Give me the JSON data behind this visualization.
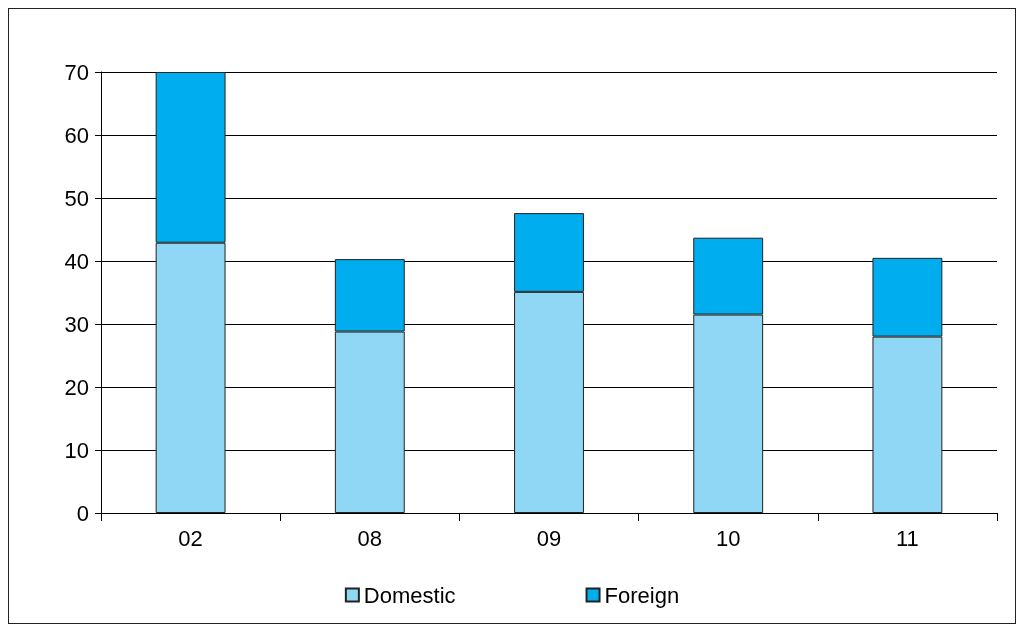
{
  "chart_data": {
    "type": "bar",
    "stacked": true,
    "categories": [
      "02",
      "08",
      "09",
      "10",
      "11"
    ],
    "series": [
      {
        "name": "Domestic",
        "color": "#8fd7f5",
        "values": [
          42.9,
          28.8,
          35.1,
          31.5,
          28.0
        ]
      },
      {
        "name": "Foreign",
        "color": "#00aeef",
        "values": [
          27.1,
          11.5,
          12.5,
          12.2,
          12.5
        ]
      }
    ],
    "ylim": [
      0,
      70
    ],
    "yticks": [
      0,
      10,
      20,
      30,
      40,
      50,
      60,
      70
    ],
    "grid": "y",
    "legend": "bottom"
  }
}
